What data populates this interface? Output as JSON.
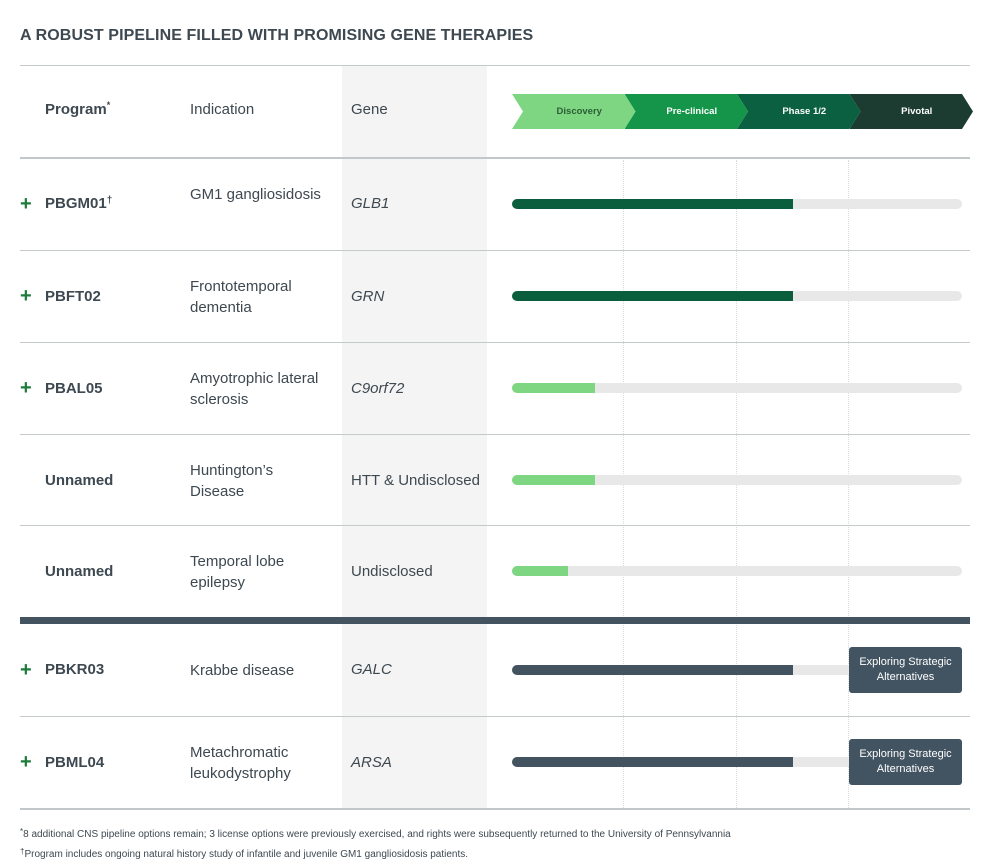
{
  "title": "A ROBUST PIPELINE FILLED WITH PROMISING GENE THERAPIES",
  "headers": {
    "program": "Program",
    "program_mark": "*",
    "indication": "Indication",
    "gene": "Gene"
  },
  "phases": [
    {
      "label": "Discovery",
      "color": "#7ed682",
      "text_color": "#2c5e35"
    },
    {
      "label": "Pre-clinical",
      "color": "#14954a",
      "text_color": "#ffffff"
    },
    {
      "label": "Phase 1/2",
      "color": "#0a6040",
      "text_color": "#ffffff"
    },
    {
      "label": "Pivotal",
      "color": "#1d3c31",
      "text_color": "#ffffff"
    }
  ],
  "rows": [
    {
      "expand": "+",
      "program": "PBGM01",
      "program_mark": "†",
      "indication": "GM1 gangliosidosis",
      "gene": "GLB1",
      "gene_italic": true,
      "progress": 0.625,
      "bar_color": "#0b5e3d",
      "status": ""
    },
    {
      "expand": "+",
      "program": "PBFT02",
      "program_mark": "",
      "indication": "Frontotemporal dementia",
      "gene": "GRN",
      "gene_italic": true,
      "progress": 0.625,
      "bar_color": "#0b5e3d",
      "status": ""
    },
    {
      "expand": "+",
      "program": "PBAL05",
      "program_mark": "",
      "indication": "Amyotrophic lateral sclerosis",
      "gene": "C9orf72",
      "gene_italic": true,
      "progress": 0.185,
      "bar_color": "#7ed682",
      "status": ""
    },
    {
      "expand": "",
      "program": "Unnamed",
      "program_mark": "",
      "indication": "Huntington’s Disease",
      "gene": "HTT & Undisclosed",
      "gene_italic": false,
      "progress": 0.185,
      "bar_color": "#7ed682",
      "status": ""
    },
    {
      "expand": "",
      "program": "Unnamed",
      "program_mark": "",
      "indication": "Temporal lobe epilepsy",
      "gene": "Undisclosed",
      "gene_italic": false,
      "progress": 0.125,
      "bar_color": "#7ed682",
      "status": ""
    },
    {
      "expand": "+",
      "program": "PBKR03",
      "program_mark": "",
      "indication": "Krabbe disease",
      "gene": "GALC",
      "gene_italic": true,
      "progress": 0.625,
      "bar_color": "#435460",
      "status": "Exploring Strategic Alternatives"
    },
    {
      "expand": "+",
      "program": "PBML04",
      "program_mark": "",
      "indication": "Metachromatic leukodystrophy",
      "gene": "ARSA",
      "gene_italic": true,
      "progress": 0.625,
      "bar_color": "#435460",
      "status": "Exploring Strategic Alternatives"
    }
  ],
  "footnotes": [
    {
      "mark": "*",
      "text": "8 additional CNS pipeline options remain; 3 license options were previously exercised, and rights were subsequently returned to the University of Pennsylvannia"
    },
    {
      "mark": "†",
      "text": "Program includes ongoing natural history study of infantile and juvenile GM1 gangliosidosis patients."
    }
  ]
}
